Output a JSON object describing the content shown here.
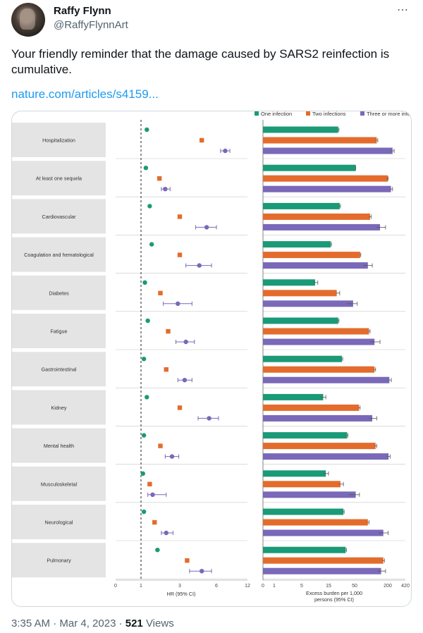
{
  "tweet": {
    "author_name": "Raffy Flynn",
    "author_handle": "@RaffyFlynnArt",
    "text": "Your friendly reminder that the damage caused by SARS2 reinfection is cumulative.",
    "link_text": "nature.com/articles/s4159...",
    "time": "3:35 AM · Mar 4, 2023 · ",
    "views_count": "521",
    "views_label": " Views"
  },
  "chart_data": {
    "type": "forest-plot-and-bar",
    "categories": [
      "Hospitalization",
      "At least one sequela",
      "Cardiovascular",
      "Coagulation and hematological",
      "Diabetes",
      "Fatigue",
      "Gastrointestinal",
      "Kidney",
      "Mental health",
      "Musculoskeletal",
      "Neurological",
      "Pulmonary"
    ],
    "legend": [
      "One infection",
      "Two infections",
      "Three or more infections"
    ],
    "colors": [
      "#1a9a76",
      "#e36c2c",
      "#7a68b8"
    ],
    "hr_axis": {
      "label": "HR (95% CI)",
      "ticks": [
        "0",
        "1",
        "3",
        "6",
        "12"
      ],
      "tick_values": [
        0,
        1,
        3,
        6,
        12
      ],
      "reference": 1
    },
    "hr_series": [
      {
        "name": "One infection",
        "values": [
          [
            1.3,
            null,
            null
          ],
          [
            1.25,
            null,
            null
          ],
          [
            1.45,
            null,
            null
          ],
          [
            1.55,
            null,
            null
          ],
          [
            1.2,
            null,
            null
          ],
          [
            1.35,
            null,
            null
          ],
          [
            1.15,
            null,
            null
          ],
          [
            1.3,
            null,
            null
          ],
          [
            1.15,
            null,
            null
          ],
          [
            1.1,
            null,
            null
          ],
          [
            1.15,
            null,
            null
          ],
          [
            1.85,
            null,
            null
          ]
        ]
      },
      {
        "name": "Two infections",
        "values": [
          [
            4.8,
            null,
            null
          ],
          [
            1.95,
            null,
            null
          ],
          [
            3.0,
            null,
            null
          ],
          [
            3.0,
            null,
            null
          ],
          [
            2.0,
            null,
            null
          ],
          [
            2.4,
            null,
            null
          ],
          [
            2.3,
            null,
            null
          ],
          [
            3.0,
            null,
            null
          ],
          [
            2.0,
            null,
            null
          ],
          [
            1.45,
            null,
            null
          ],
          [
            1.7,
            null,
            null
          ],
          [
            3.6,
            null,
            null
          ]
        ]
      },
      {
        "name": "Three or more infections",
        "values": [
          [
            7.7,
            6.8,
            8.6
          ],
          [
            2.25,
            2.05,
            2.5
          ],
          [
            5.2,
            4.3,
            6.0
          ],
          [
            4.6,
            3.5,
            5.6
          ],
          [
            2.9,
            2.15,
            4.0
          ],
          [
            3.5,
            2.8,
            4.2
          ],
          [
            3.4,
            2.9,
            4.0
          ],
          [
            5.4,
            4.5,
            6.4
          ],
          [
            2.6,
            2.25,
            2.95
          ],
          [
            1.6,
            1.35,
            2.3
          ],
          [
            2.3,
            2.05,
            2.65
          ],
          [
            4.8,
            3.8,
            5.6
          ]
        ]
      }
    ],
    "burden_axis": {
      "label": "Excess burden per 1,000 persons (95% CI)",
      "ticks": [
        "0",
        "1",
        "5",
        "15",
        "50",
        "200",
        "420"
      ],
      "tick_values": [
        0,
        1,
        5,
        15,
        50,
        200,
        420
      ]
    },
    "burden_series": [
      {
        "name": "One infection",
        "values": [
          [
            28,
            27,
            29
          ],
          [
            55,
            null,
            null
          ],
          [
            30,
            29,
            31
          ],
          [
            18,
            17,
            19
          ],
          [
            10,
            9.5,
            11
          ],
          [
            28,
            27,
            29
          ],
          [
            33,
            32,
            34
          ],
          [
            13,
            12,
            14
          ],
          [
            40,
            39,
            41
          ],
          [
            14,
            13,
            15
          ],
          [
            35,
            34,
            36
          ],
          [
            38,
            37,
            39
          ]
        ]
      },
      {
        "name": "Two infections",
        "values": [
          [
            150,
            145,
            155
          ],
          [
            200,
            195,
            205
          ],
          [
            120,
            115,
            125
          ],
          [
            75,
            72,
            78
          ],
          [
            26,
            25,
            30
          ],
          [
            115,
            110,
            120
          ],
          [
            140,
            135,
            145
          ],
          [
            70,
            65,
            75
          ],
          [
            145,
            140,
            150
          ],
          [
            31,
            29,
            35
          ],
          [
            110,
            105,
            115
          ],
          [
            180,
            175,
            185
          ]
        ]
      },
      {
        "name": "Three or more infections",
        "values": [
          [
            260,
            240,
            280
          ],
          [
            240,
            225,
            260
          ],
          [
            165,
            150,
            190
          ],
          [
            110,
            90,
            130
          ],
          [
            48,
            40,
            62
          ],
          [
            140,
            120,
            165
          ],
          [
            220,
            200,
            245
          ],
          [
            130,
            115,
            150
          ],
          [
            210,
            195,
            230
          ],
          [
            55,
            42,
            72
          ],
          [
            180,
            160,
            205
          ],
          [
            170,
            155,
            190
          ]
        ]
      }
    ]
  }
}
